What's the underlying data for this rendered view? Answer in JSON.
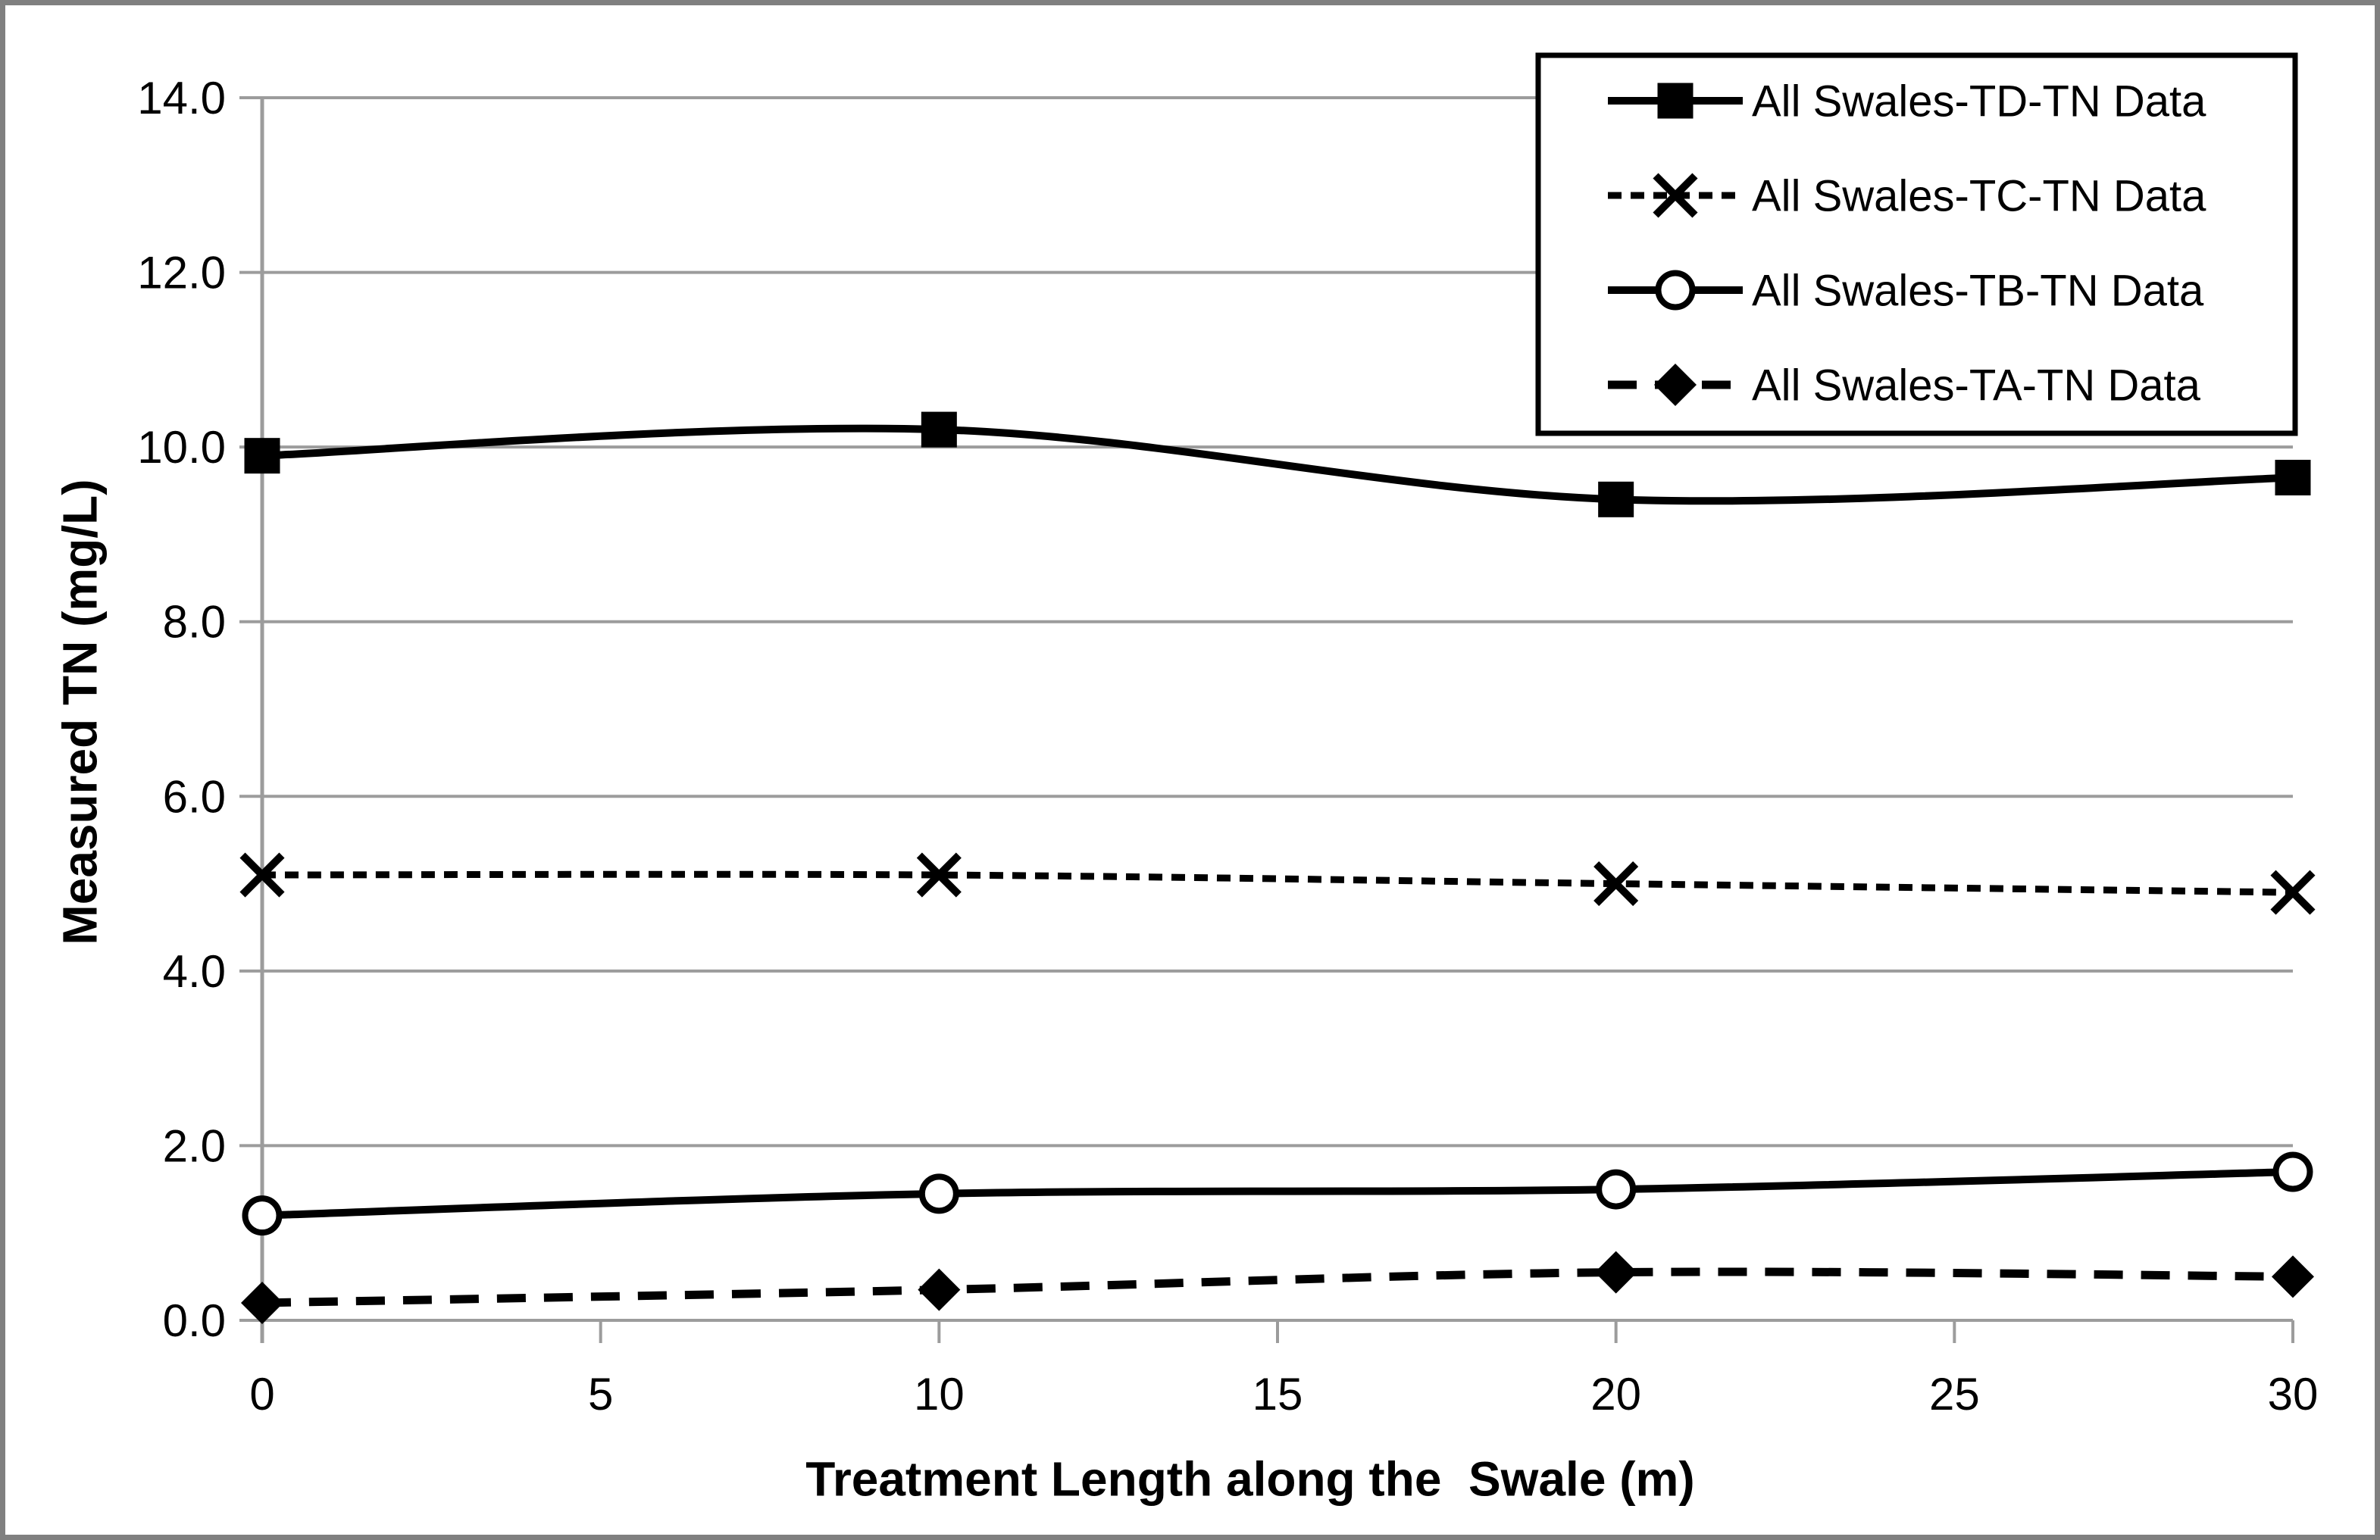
{
  "figure": {
    "background": "#FFFFFF",
    "border_color": "#808080"
  },
  "chart_data": {
    "type": "line",
    "x": [
      0,
      10,
      20,
      30
    ],
    "series": [
      {
        "name": "All Swales-TD-TN Data",
        "values": [
          9.9,
          10.2,
          9.4,
          9.65
        ],
        "marker": "filled-square",
        "line_style": "solid",
        "color": "#000000"
      },
      {
        "name": "All Swales-TC-TN Data",
        "values": [
          5.1,
          5.1,
          5.0,
          4.9
        ],
        "marker": "x-cross",
        "line_style": "dashed",
        "color": "#000000"
      },
      {
        "name": "All Swales-TB-TN Data",
        "values": [
          1.2,
          1.45,
          1.5,
          1.7
        ],
        "marker": "open-circle",
        "line_style": "solid",
        "color": "#000000"
      },
      {
        "name": "All Swales-TA-TN Data",
        "values": [
          0.2,
          0.35,
          0.55,
          0.5
        ],
        "marker": "filled-diamond",
        "line_style": "dashed",
        "color": "#000000"
      }
    ],
    "xlabel": "Treatment Length along the  Swale (m)",
    "ylabel": "Measured TN (mg/L)",
    "xlim": [
      0,
      30
    ],
    "ylim": [
      0,
      14
    ],
    "x_ticks": {
      "values": [
        0,
        5,
        10,
        15,
        20,
        25,
        30
      ],
      "labels": [
        "0",
        "5",
        "10",
        "15",
        "20",
        "25",
        "30"
      ]
    },
    "y_ticks": {
      "values": [
        0,
        2,
        4,
        6,
        8,
        10,
        12,
        14
      ],
      "labels": [
        "0.0",
        "2.0",
        "4.0",
        "6.0",
        "8.0",
        "10.0",
        "12.0",
        "14.0"
      ]
    },
    "grid": "horizontal",
    "grid_color": "#9C9C9C",
    "axis_color": "#9C9C9C",
    "line_color": "#000000",
    "legend": {
      "position": "top-right",
      "border_color": "#000000"
    }
  }
}
